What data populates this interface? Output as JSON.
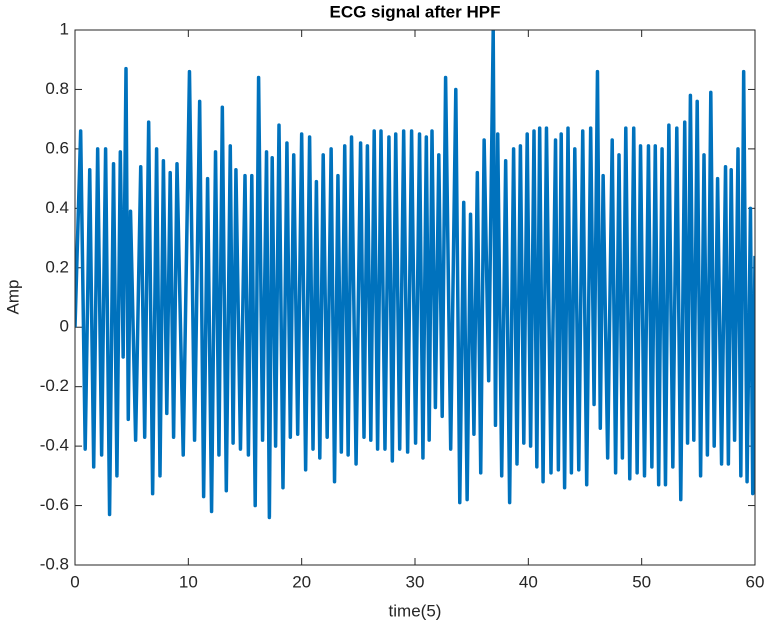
{
  "chart_data": {
    "type": "line",
    "title": "ECG signal after HPF",
    "x_label": "time(5)",
    "y_label": "Amp",
    "x": [
      0,
      0.5,
      0.9,
      1.3,
      1.65,
      2.0,
      2.35,
      2.7,
      3.05,
      3.4,
      3.7,
      4.0,
      4.25,
      4.5,
      4.7,
      4.9,
      5.35,
      5.8,
      6.15,
      6.5,
      6.85,
      7.2,
      7.5,
      7.8,
      8.1,
      8.4,
      8.7,
      9.0,
      9.55,
      10.1,
      10.55,
      11.0,
      11.35,
      11.7,
      12.05,
      12.4,
      12.7,
      13.0,
      13.35,
      13.7,
      13.95,
      14.2,
      14.6,
      15.0,
      15.3,
      15.6,
      15.9,
      16.2,
      16.55,
      16.9,
      17.15,
      17.4,
      17.7,
      18.0,
      18.35,
      18.7,
      19.0,
      19.3,
      19.65,
      20.0,
      20.35,
      20.7,
      21.0,
      21.3,
      21.6,
      21.9,
      22.25,
      22.6,
      22.9,
      23.2,
      23.5,
      23.8,
      24.1,
      24.4,
      24.8,
      25.2,
      25.5,
      25.8,
      26.1,
      26.4,
      26.7,
      27.0,
      27.35,
      27.7,
      28.0,
      28.3,
      28.65,
      29.0,
      29.35,
      29.7,
      30.05,
      30.4,
      30.7,
      31.0,
      31.25,
      31.5,
      31.8,
      32.1,
      32.4,
      32.7,
      33.15,
      33.6,
      33.95,
      34.3,
      34.6,
      34.9,
      35.2,
      35.5,
      35.8,
      36.1,
      36.5,
      36.9,
      37.1,
      37.3,
      37.65,
      38.0,
      38.35,
      38.7,
      39.0,
      39.3,
      39.6,
      39.9,
      40.2,
      40.5,
      40.75,
      41.0,
      41.3,
      41.6,
      42.0,
      42.4,
      42.65,
      42.9,
      43.2,
      43.5,
      43.8,
      44.1,
      44.45,
      44.8,
      45.15,
      45.5,
      45.8,
      46.1,
      46.35,
      46.6,
      47.0,
      47.4,
      47.7,
      48.0,
      48.3,
      48.6,
      48.95,
      49.3,
      49.6,
      49.9,
      50.25,
      50.6,
      50.9,
      51.2,
      51.5,
      51.8,
      52.1,
      52.4,
      52.75,
      53.1,
      53.45,
      53.8,
      54.05,
      54.3,
      54.6,
      54.9,
      55.2,
      55.5,
      55.8,
      56.1,
      56.4,
      56.7,
      57.05,
      57.4,
      57.65,
      57.9,
      58.2,
      58.5,
      58.75,
      59.0,
      59.3,
      59.6,
      59.8,
      60
    ],
    "series": [
      {
        "color": "#0072bd",
        "values": [
          0,
          0.66,
          -0.41,
          0.53,
          -0.47,
          0.6,
          -0.43,
          0.6,
          -0.63,
          0.55,
          -0.5,
          0.59,
          -0.1,
          0.87,
          -0.31,
          0.39,
          -0.38,
          0.54,
          -0.37,
          0.69,
          -0.56,
          0.6,
          -0.5,
          0.56,
          -0.29,
          0.52,
          -0.37,
          0.55,
          -0.43,
          0.86,
          -0.38,
          0.76,
          -0.57,
          0.5,
          -0.62,
          0.59,
          -0.43,
          0.74,
          -0.55,
          0.61,
          -0.39,
          0.53,
          -0.41,
          0.51,
          -0.43,
          0.51,
          -0.6,
          0.84,
          -0.38,
          0.59,
          -0.64,
          0.57,
          -0.4,
          0.68,
          -0.54,
          0.62,
          -0.37,
          0.58,
          -0.36,
          0.65,
          -0.48,
          0.64,
          -0.41,
          0.49,
          -0.44,
          0.58,
          -0.37,
          0.6,
          -0.52,
          0.51,
          -0.42,
          0.61,
          -0.43,
          0.64,
          -0.46,
          0.62,
          -0.37,
          0.61,
          -0.38,
          0.66,
          -0.41,
          0.66,
          -0.41,
          0.64,
          -0.45,
          0.65,
          -0.41,
          0.66,
          -0.42,
          0.66,
          -0.39,
          0.65,
          -0.44,
          0.64,
          -0.38,
          0.66,
          -0.27,
          0.58,
          -0.3,
          0.84,
          -0.41,
          0.8,
          -0.59,
          0.42,
          -0.58,
          0.38,
          -0.36,
          0.52,
          -0.49,
          0.63,
          -0.18,
          1.0,
          -0.33,
          0.65,
          -0.5,
          0.56,
          -0.59,
          0.6,
          -0.46,
          0.61,
          -0.39,
          0.65,
          -0.4,
          0.66,
          -0.47,
          0.67,
          -0.52,
          0.67,
          -0.49,
          0.63,
          -0.48,
          0.65,
          -0.54,
          0.67,
          -0.49,
          0.6,
          -0.48,
          0.66,
          -0.53,
          0.67,
          -0.26,
          0.86,
          -0.34,
          0.51,
          -0.44,
          0.63,
          -0.49,
          0.58,
          -0.44,
          0.67,
          -0.51,
          0.67,
          -0.49,
          0.61,
          -0.5,
          0.61,
          -0.47,
          0.61,
          -0.53,
          0.6,
          -0.53,
          0.68,
          -0.47,
          0.67,
          -0.58,
          0.69,
          -0.39,
          0.78,
          -0.38,
          0.76,
          -0.5,
          0.58,
          -0.43,
          0.79,
          -0.4,
          0.5,
          -0.46,
          0.54,
          -0.46,
          0.53,
          -0.38,
          0.6,
          -0.5,
          0.86,
          -0.52,
          0.4,
          -0.56,
          0.24
        ]
      }
    ],
    "xlim": [
      0,
      60
    ],
    "xticks": [
      0,
      10,
      20,
      30,
      40,
      50,
      60
    ],
    "ylim": [
      -0.8,
      1
    ],
    "yticks": [
      -0.8,
      -0.6,
      -0.4,
      -0.2,
      0,
      0.2,
      0.4,
      0.6,
      0.8,
      1
    ]
  }
}
